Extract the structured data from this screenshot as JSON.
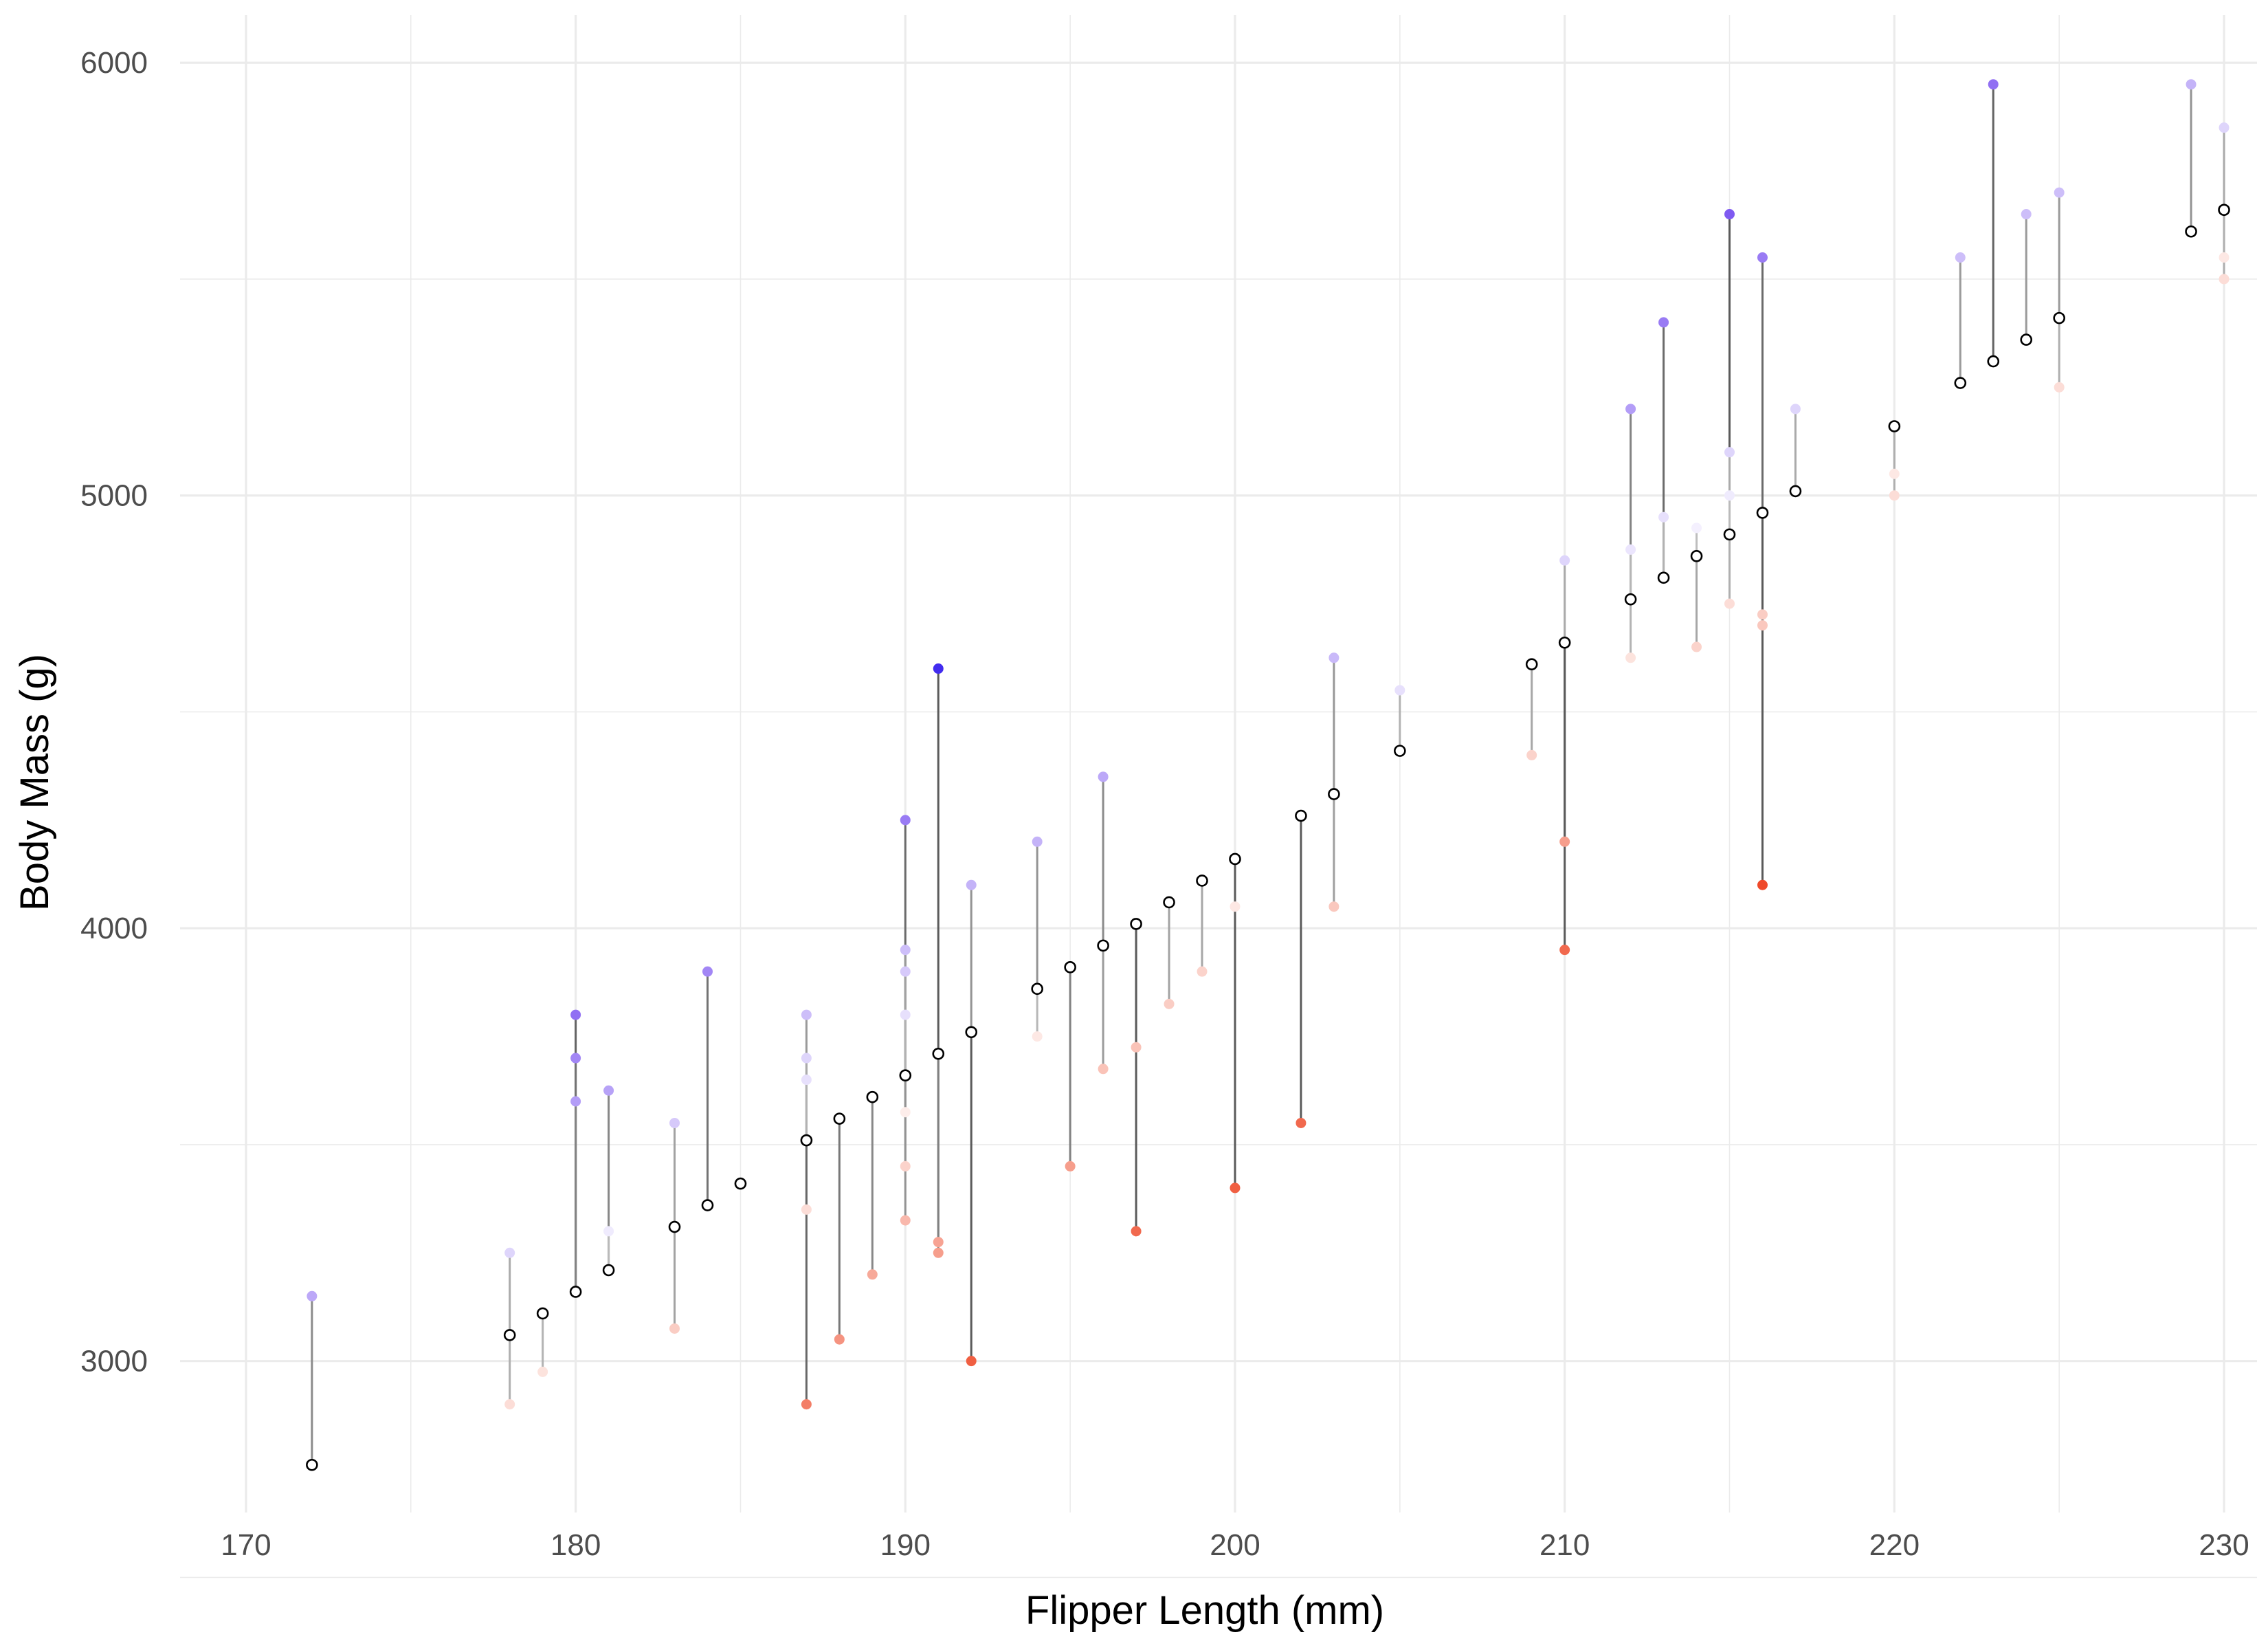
{
  "chart_data": {
    "type": "scatter",
    "title": "",
    "xlabel": "Flipper Length (mm)",
    "ylabel": "Body Mass (g)",
    "xlim": [
      168,
      231
    ],
    "ylim": [
      2650,
      6110
    ],
    "x_ticks": [
      170,
      180,
      190,
      200,
      210,
      220,
      230
    ],
    "y_ticks": [
      3000,
      4000,
      5000,
      6000
    ],
    "grid": true,
    "legend": "none",
    "colors": {
      "high": "#0000ee",
      "mid": "#ffffff",
      "low": "#ee2200"
    },
    "fitted": [
      {
        "x": 172,
        "y": 2760
      },
      {
        "x": 178,
        "y": 3060
      },
      {
        "x": 179,
        "y": 3110
      },
      {
        "x": 180,
        "y": 3160
      },
      {
        "x": 181,
        "y": 3210
      },
      {
        "x": 183,
        "y": 3310
      },
      {
        "x": 184,
        "y": 3360
      },
      {
        "x": 185,
        "y": 3410
      },
      {
        "x": 187,
        "y": 3510
      },
      {
        "x": 188,
        "y": 3560
      },
      {
        "x": 189,
        "y": 3610
      },
      {
        "x": 190,
        "y": 3660
      },
      {
        "x": 191,
        "y": 3710
      },
      {
        "x": 192,
        "y": 3760
      },
      {
        "x": 194,
        "y": 3860
      },
      {
        "x": 195,
        "y": 3910
      },
      {
        "x": 196,
        "y": 3960
      },
      {
        "x": 197,
        "y": 4010
      },
      {
        "x": 198,
        "y": 4060
      },
      {
        "x": 199,
        "y": 4110
      },
      {
        "x": 200,
        "y": 4160
      },
      {
        "x": 202,
        "y": 4260
      },
      {
        "x": 203,
        "y": 4310
      },
      {
        "x": 205,
        "y": 4410
      },
      {
        "x": 209,
        "y": 4610
      },
      {
        "x": 210,
        "y": 4660
      },
      {
        "x": 212,
        "y": 4760
      },
      {
        "x": 213,
        "y": 4810
      },
      {
        "x": 214,
        "y": 4860
      },
      {
        "x": 215,
        "y": 4910
      },
      {
        "x": 216,
        "y": 4960
      },
      {
        "x": 217,
        "y": 5010
      },
      {
        "x": 220,
        "y": 5160
      },
      {
        "x": 222,
        "y": 5260
      },
      {
        "x": 223,
        "y": 5310
      },
      {
        "x": 224,
        "y": 5360
      },
      {
        "x": 225,
        "y": 5410
      },
      {
        "x": 229,
        "y": 5610
      },
      {
        "x": 230,
        "y": 5660
      }
    ],
    "observed": [
      {
        "x": 172,
        "y": 3150
      },
      {
        "x": 178,
        "y": 3250
      },
      {
        "x": 178,
        "y": 2900
      },
      {
        "x": 179,
        "y": 2975
      },
      {
        "x": 180,
        "y": 3800
      },
      {
        "x": 180,
        "y": 3700
      },
      {
        "x": 180,
        "y": 3600
      },
      {
        "x": 181,
        "y": 3625
      },
      {
        "x": 181,
        "y": 3300
      },
      {
        "x": 183,
        "y": 3550
      },
      {
        "x": 183,
        "y": 3075
      },
      {
        "x": 184,
        "y": 3900
      },
      {
        "x": 187,
        "y": 3800
      },
      {
        "x": 187,
        "y": 3700
      },
      {
        "x": 187,
        "y": 3650
      },
      {
        "x": 187,
        "y": 3350
      },
      {
        "x": 187,
        "y": 2900
      },
      {
        "x": 188,
        "y": 3050
      },
      {
        "x": 189,
        "y": 3200
      },
      {
        "x": 190,
        "y": 4250
      },
      {
        "x": 190,
        "y": 3950
      },
      {
        "x": 190,
        "y": 3900
      },
      {
        "x": 190,
        "y": 3800
      },
      {
        "x": 190,
        "y": 3575
      },
      {
        "x": 190,
        "y": 3450
      },
      {
        "x": 190,
        "y": 3325
      },
      {
        "x": 191,
        "y": 4600
      },
      {
        "x": 191,
        "y": 3275
      },
      {
        "x": 191,
        "y": 3250
      },
      {
        "x": 192,
        "y": 4100
      },
      {
        "x": 192,
        "y": 3000
      },
      {
        "x": 194,
        "y": 4200
      },
      {
        "x": 194,
        "y": 3750
      },
      {
        "x": 195,
        "y": 3450
      },
      {
        "x": 196,
        "y": 4350
      },
      {
        "x": 196,
        "y": 3675
      },
      {
        "x": 197,
        "y": 3725
      },
      {
        "x": 197,
        "y": 3300
      },
      {
        "x": 198,
        "y": 3825
      },
      {
        "x": 199,
        "y": 3900
      },
      {
        "x": 200,
        "y": 4050
      },
      {
        "x": 200,
        "y": 3400
      },
      {
        "x": 202,
        "y": 3550
      },
      {
        "x": 203,
        "y": 4625
      },
      {
        "x": 203,
        "y": 4050
      },
      {
        "x": 205,
        "y": 4550
      },
      {
        "x": 209,
        "y": 4400
      },
      {
        "x": 210,
        "y": 4850
      },
      {
        "x": 210,
        "y": 4200
      },
      {
        "x": 210,
        "y": 3950
      },
      {
        "x": 212,
        "y": 5200
      },
      {
        "x": 212,
        "y": 4875
      },
      {
        "x": 212,
        "y": 4625
      },
      {
        "x": 213,
        "y": 5400
      },
      {
        "x": 213,
        "y": 4950
      },
      {
        "x": 214,
        "y": 4925
      },
      {
        "x": 214,
        "y": 4650
      },
      {
        "x": 215,
        "y": 5650
      },
      {
        "x": 215,
        "y": 5100
      },
      {
        "x": 215,
        "y": 5000
      },
      {
        "x": 215,
        "y": 4750
      },
      {
        "x": 216,
        "y": 5550
      },
      {
        "x": 216,
        "y": 4725
      },
      {
        "x": 216,
        "y": 4700
      },
      {
        "x": 216,
        "y": 4100
      },
      {
        "x": 217,
        "y": 5200
      },
      {
        "x": 220,
        "y": 5050
      },
      {
        "x": 220,
        "y": 5000
      },
      {
        "x": 222,
        "y": 5550
      },
      {
        "x": 223,
        "y": 5950
      },
      {
        "x": 224,
        "y": 5650
      },
      {
        "x": 225,
        "y": 5700
      },
      {
        "x": 225,
        "y": 5250
      },
      {
        "x": 229,
        "y": 5950
      },
      {
        "x": 230,
        "y": 5850
      },
      {
        "x": 230,
        "y": 5550
      },
      {
        "x": 230,
        "y": 5500
      }
    ]
  }
}
